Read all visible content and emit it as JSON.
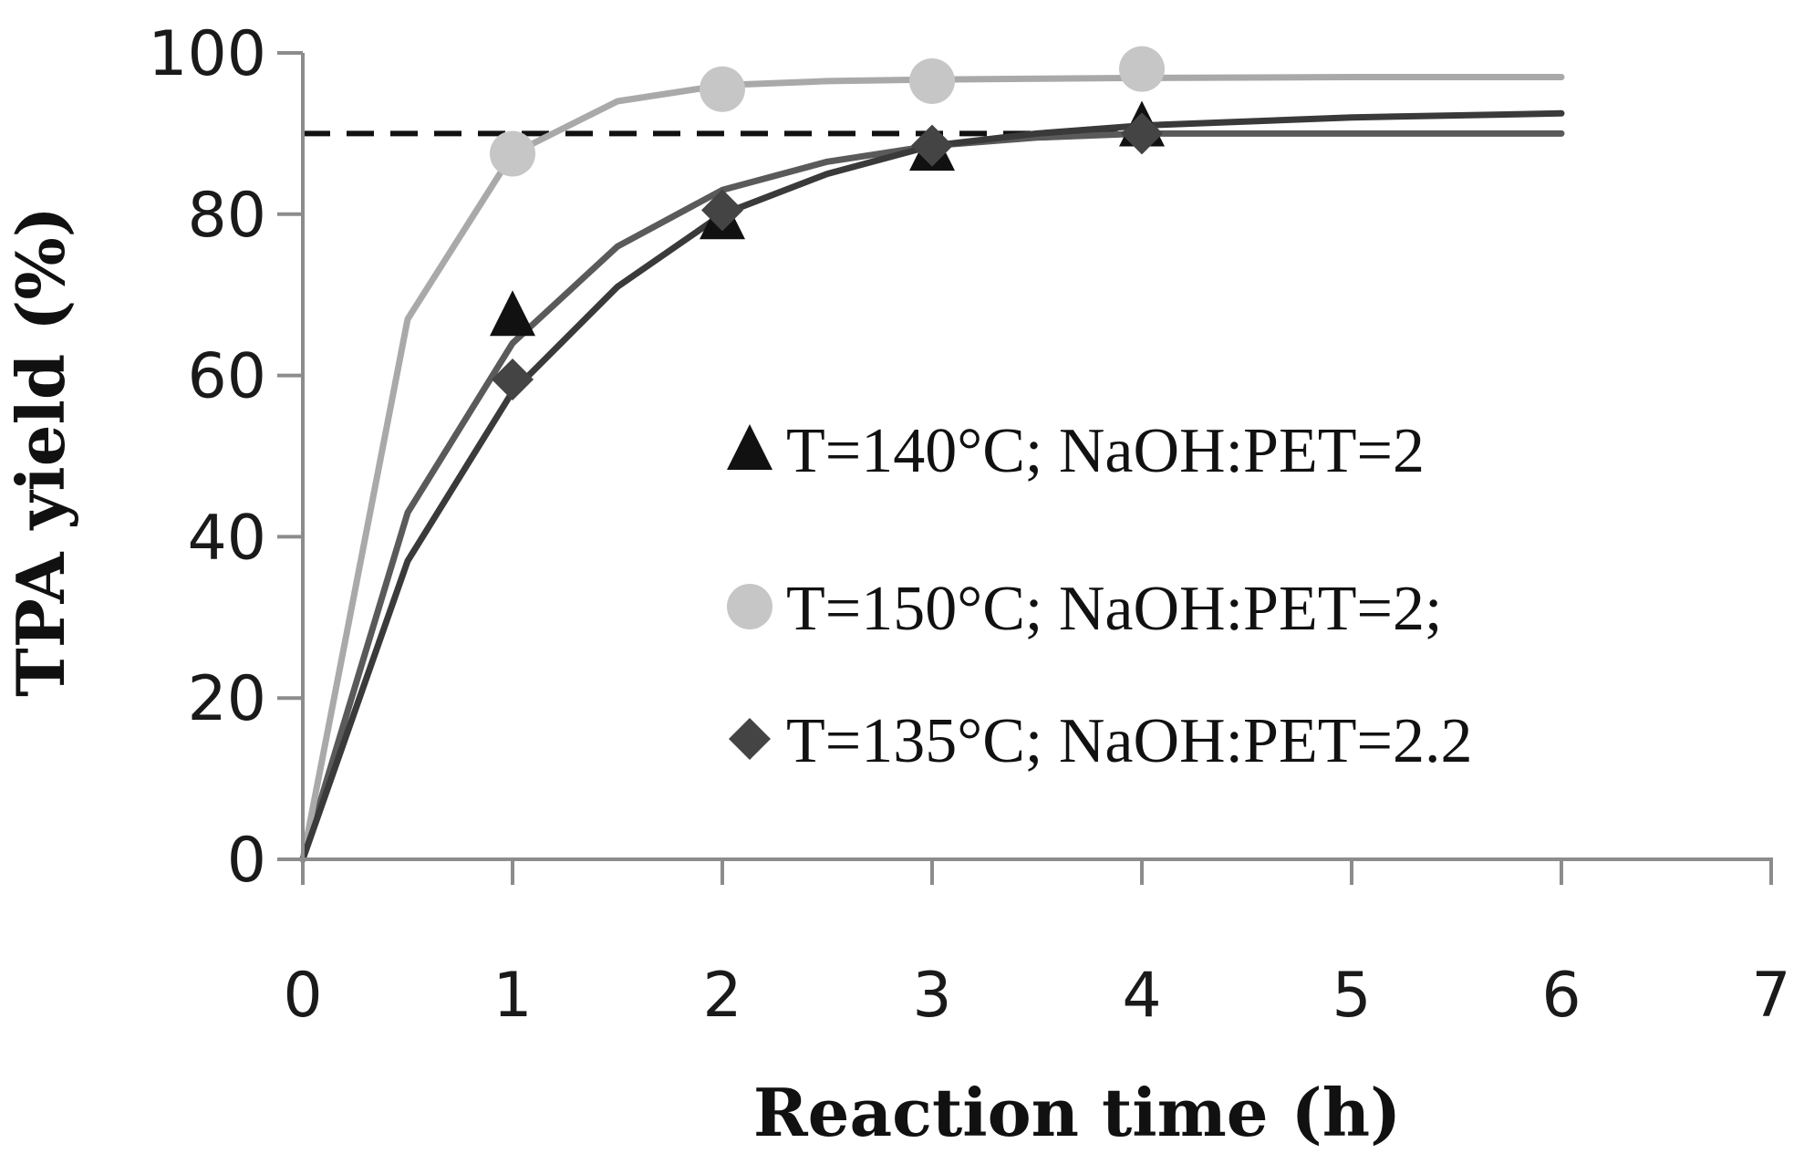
{
  "chart_data": {
    "type": "line",
    "title": "",
    "xlabel": "Reaction time (h)",
    "ylabel": "TPA yield (%)",
    "xlim": [
      0,
      7
    ],
    "ylim": [
      0,
      100
    ],
    "x_ticks": [
      "0",
      "1",
      "2",
      "3",
      "4",
      "5",
      "6",
      "7"
    ],
    "y_ticks": [
      "0",
      "20",
      "40",
      "60",
      "80",
      "100"
    ],
    "grid": false,
    "legend_position": "center-right",
    "reference_line": {
      "y": 90,
      "style": "dashed",
      "color": "#111111"
    },
    "series": [
      {
        "name": "T=140°C; NaOH:PET=2",
        "marker": "triangle",
        "color": "#111111",
        "line_color": "#5a5a5a",
        "points_x": [
          1,
          2,
          3,
          4
        ],
        "points_y": [
          67.5,
          79.5,
          88,
          91
        ],
        "curve_x": [
          0,
          0.5,
          1,
          1.5,
          2,
          2.5,
          3,
          3.5,
          4,
          5,
          6
        ],
        "curve_y": [
          0,
          43,
          64,
          76,
          83,
          86.5,
          88.5,
          89.5,
          90,
          90,
          90
        ]
      },
      {
        "name": "T=150°C; NaOH:PET=2;",
        "marker": "circle",
        "color": "#c6c6c6",
        "line_color": "#a9a9a9",
        "points_x": [
          1,
          2,
          3,
          4
        ],
        "points_y": [
          87.5,
          95.5,
          96.5,
          98
        ],
        "curve_x": [
          0,
          0.5,
          1,
          1.5,
          2,
          2.5,
          3,
          3.5,
          4,
          5,
          6
        ],
        "curve_y": [
          0,
          67,
          87.5,
          94,
          96,
          96.5,
          96.7,
          96.8,
          96.9,
          97,
          97
        ]
      },
      {
        "name": "T=135°C; NaOH:PET=2.2",
        "marker": "diamond",
        "color": "#444444",
        "line_color": "#3a3a3a",
        "points_x": [
          1,
          2,
          3,
          4
        ],
        "points_y": [
          59.5,
          80.5,
          88.5,
          90
        ],
        "curve_x": [
          0,
          0.5,
          1,
          1.5,
          2,
          2.5,
          3,
          3.5,
          4,
          5,
          6
        ],
        "curve_y": [
          0,
          37,
          58,
          71,
          80,
          85,
          88.5,
          90,
          91,
          92,
          92.5
        ]
      }
    ]
  }
}
